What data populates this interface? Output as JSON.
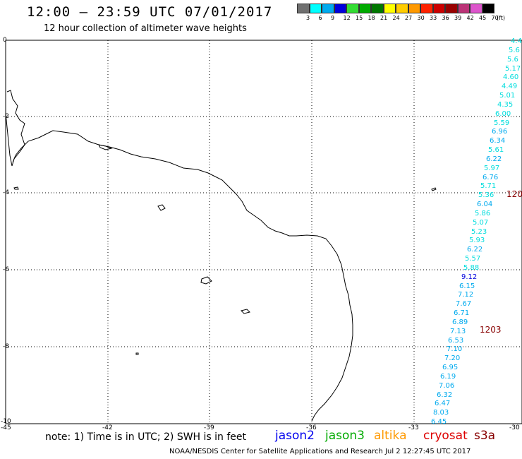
{
  "header": {
    "title": "12:00 – 23:59 UTC 07/01/2017",
    "subtitle": "12 hour collection of altimeter wave heights"
  },
  "color_scale": {
    "unit_label": "(ft)",
    "bins": [
      {
        "label": "3",
        "color": "#707070"
      },
      {
        "label": "6",
        "color": "#00ffff"
      },
      {
        "label": "9",
        "color": "#00aaee"
      },
      {
        "label": "12",
        "color": "#0000dd"
      },
      {
        "label": "15",
        "color": "#33dd33"
      },
      {
        "label": "18",
        "color": "#00aa00"
      },
      {
        "label": "21",
        "color": "#007700"
      },
      {
        "label": "24",
        "color": "#ffff00"
      },
      {
        "label": "27",
        "color": "#ffcc00"
      },
      {
        "label": "30",
        "color": "#ff9900"
      },
      {
        "label": "33",
        "color": "#ff2200"
      },
      {
        "label": "36",
        "color": "#cc0000"
      },
      {
        "label": "39",
        "color": "#990000"
      },
      {
        "label": "42",
        "color": "#bb3377"
      },
      {
        "label": "45",
        "color": "#dd55cc"
      },
      {
        "label": "70",
        "color": "#000000"
      }
    ]
  },
  "axes": {
    "y_labels": [
      "0",
      "-2",
      "-4",
      "-6",
      "-8",
      "-10"
    ],
    "x_labels": [
      "-45",
      "-42",
      "-39",
      "-36",
      "-33",
      "-30"
    ]
  },
  "observations": [
    {
      "text": "4.4",
      "color": "#00dddd"
    },
    {
      "text": "5.6",
      "color": "#00dddd"
    },
    {
      "text": "5.6",
      "color": "#00dddd"
    },
    {
      "text": "5.17",
      "color": "#00dddd"
    },
    {
      "text": "4.60",
      "color": "#00dddd"
    },
    {
      "text": "4.49",
      "color": "#00dddd"
    },
    {
      "text": "5.01",
      "color": "#00dddd"
    },
    {
      "text": "4.35",
      "color": "#00dddd"
    },
    {
      "text": "6.00",
      "color": "#00dddd"
    },
    {
      "text": "5.59",
      "color": "#00dddd"
    },
    {
      "text": "6.96",
      "color": "#00aaee"
    },
    {
      "text": "6.34",
      "color": "#00aaee"
    },
    {
      "text": "5.61",
      "color": "#00dddd"
    },
    {
      "text": "6.22",
      "color": "#00aaee"
    },
    {
      "text": "5.97",
      "color": "#00dddd"
    },
    {
      "text": "6.76",
      "color": "#00aaee"
    },
    {
      "text": "5.71",
      "color": "#00dddd"
    },
    {
      "text": "5.36",
      "color": "#00dddd"
    },
    {
      "text": "6.04",
      "color": "#00aaee"
    },
    {
      "text": "5.86",
      "color": "#00dddd"
    },
    {
      "text": "5.07",
      "color": "#00dddd"
    },
    {
      "text": "5.23",
      "color": "#00dddd"
    },
    {
      "text": "5.93",
      "color": "#00dddd"
    },
    {
      "text": "6.22",
      "color": "#00aaee"
    },
    {
      "text": "5.57",
      "color": "#00dddd"
    },
    {
      "text": "5.88",
      "color": "#00dddd"
    },
    {
      "text": "9.12",
      "color": "#0000dd"
    },
    {
      "text": "6.15",
      "color": "#00aaee"
    },
    {
      "text": "7.12",
      "color": "#00aaee"
    },
    {
      "text": "7.67",
      "color": "#00aaee"
    },
    {
      "text": "6.71",
      "color": "#00aaee"
    },
    {
      "text": "6.89",
      "color": "#00aaee"
    },
    {
      "text": "7.13",
      "color": "#00aaee"
    },
    {
      "text": "6.53",
      "color": "#00aaee"
    },
    {
      "text": "7.10",
      "color": "#00aaee"
    },
    {
      "text": "7.20",
      "color": "#00aaee"
    },
    {
      "text": "6.95",
      "color": "#00aaee"
    },
    {
      "text": "6.19",
      "color": "#00aaee"
    },
    {
      "text": "7.06",
      "color": "#00aaee"
    },
    {
      "text": "6.32",
      "color": "#00aaee"
    },
    {
      "text": "6.47",
      "color": "#00aaee"
    },
    {
      "text": "8.03",
      "color": "#00aaee"
    },
    {
      "text": "6.45",
      "color": "#00aaee"
    }
  ],
  "time_markers": [
    {
      "text": "120",
      "color": "#880000"
    },
    {
      "text": "1203",
      "color": "#880000"
    }
  ],
  "footer": {
    "note": "note: 1) Time is in UTC; 2) SWH is in feet",
    "satellites": [
      {
        "name": "jason2",
        "color": "#0000ee"
      },
      {
        "name": "jason3",
        "color": "#00aa00"
      },
      {
        "name": "altika",
        "color": "#ff9900"
      },
      {
        "name": "cryosat",
        "color": "#dd0000"
      },
      {
        "name": "s3a",
        "color": "#880000"
      }
    ],
    "credit": "NOAA/NESDIS Center for Satellite Applications and Research   Jul  2 12:27:45 UTC 2017"
  }
}
